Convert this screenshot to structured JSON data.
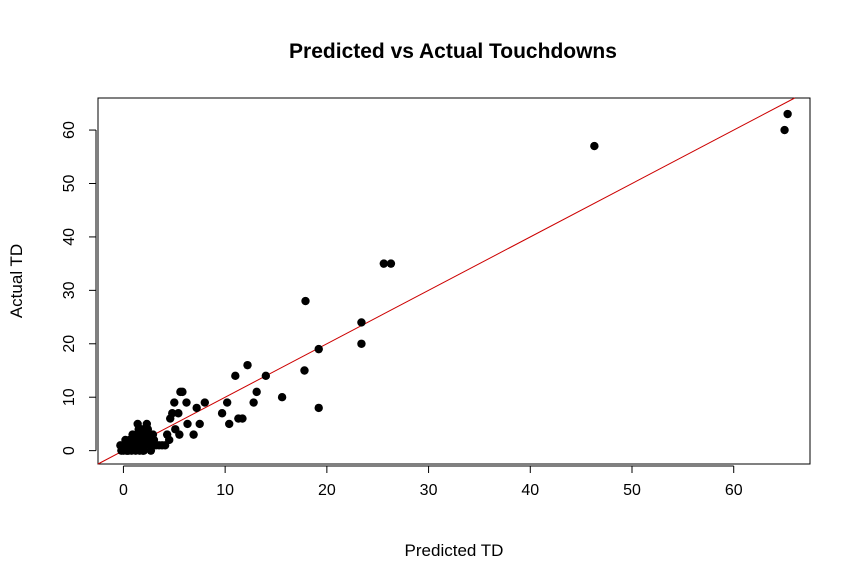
{
  "chart_data": {
    "type": "scatter",
    "title": "Predicted vs Actual Touchdowns",
    "xlabel": "Predicted TD",
    "ylabel": "Actual TD",
    "xlim": [
      -2.5,
      67.5
    ],
    "ylim": [
      -2.5,
      66
    ],
    "xticks": [
      0,
      10,
      20,
      30,
      40,
      50,
      60
    ],
    "yticks": [
      0,
      10,
      20,
      30,
      40,
      50,
      60
    ],
    "point_color": "#000000",
    "reference_line": {
      "intercept": 0,
      "slope": 1,
      "color": "#cc0000"
    },
    "series": [
      {
        "points": [
          [
            65.3,
            63
          ],
          [
            65,
            60
          ],
          [
            46.3,
            57
          ],
          [
            26.3,
            35
          ],
          [
            25.6,
            35
          ],
          [
            17.9,
            28
          ],
          [
            23.4,
            24
          ],
          [
            23.4,
            20
          ],
          [
            19.2,
            19
          ],
          [
            19.2,
            8
          ],
          [
            17.8,
            15
          ],
          [
            15.6,
            10
          ],
          [
            14,
            14
          ],
          [
            13.1,
            11
          ],
          [
            12.8,
            9
          ],
          [
            12.2,
            16
          ],
          [
            11.7,
            6
          ],
          [
            11.3,
            6
          ],
          [
            11.0,
            14
          ],
          [
            10.4,
            5
          ],
          [
            10.2,
            9
          ],
          [
            9.7,
            7
          ],
          [
            8.0,
            9
          ],
          [
            7.5,
            5
          ],
          [
            7.2,
            8
          ],
          [
            6.9,
            3
          ],
          [
            6.3,
            5
          ],
          [
            6.2,
            9
          ],
          [
            5.8,
            11
          ],
          [
            5.6,
            11
          ],
          [
            5.5,
            3
          ],
          [
            5.4,
            7
          ],
          [
            5.1,
            4
          ],
          [
            5.0,
            9
          ],
          [
            4.8,
            7
          ],
          [
            4.6,
            6
          ],
          [
            4.5,
            2
          ],
          [
            4.3,
            3
          ],
          [
            4.1,
            1
          ],
          [
            3.8,
            1
          ],
          [
            3.5,
            1
          ],
          [
            3.2,
            1
          ],
          [
            2.9,
            3
          ],
          [
            2.8,
            2
          ],
          [
            2.7,
            0
          ],
          [
            2.6,
            1
          ],
          [
            2.5,
            3
          ],
          [
            2.4,
            4
          ],
          [
            2.3,
            5
          ],
          [
            2.2,
            2
          ],
          [
            2.1,
            1
          ],
          [
            2.0,
            3
          ],
          [
            1.9,
            0
          ],
          [
            1.8,
            4
          ],
          [
            1.7,
            2
          ],
          [
            1.6,
            0
          ],
          [
            1.5,
            1
          ],
          [
            1.4,
            5
          ],
          [
            1.3,
            3
          ],
          [
            1.2,
            0
          ],
          [
            1.1,
            2
          ],
          [
            1.0,
            1
          ],
          [
            0.9,
            3
          ],
          [
            0.8,
            0
          ],
          [
            0.7,
            1
          ],
          [
            0.6,
            2
          ],
          [
            0.5,
            0
          ],
          [
            0.4,
            1
          ],
          [
            0.3,
            0
          ],
          [
            0.2,
            2
          ],
          [
            0.1,
            1
          ],
          [
            0.0,
            0
          ],
          [
            -0.2,
            0
          ],
          [
            -0.3,
            1
          ],
          [
            1.5,
            4
          ],
          [
            2.0,
            0
          ],
          [
            2.4,
            2
          ],
          [
            1.8,
            1
          ],
          [
            3.0,
            2
          ],
          [
            0.9,
            1
          ]
        ]
      }
    ]
  }
}
